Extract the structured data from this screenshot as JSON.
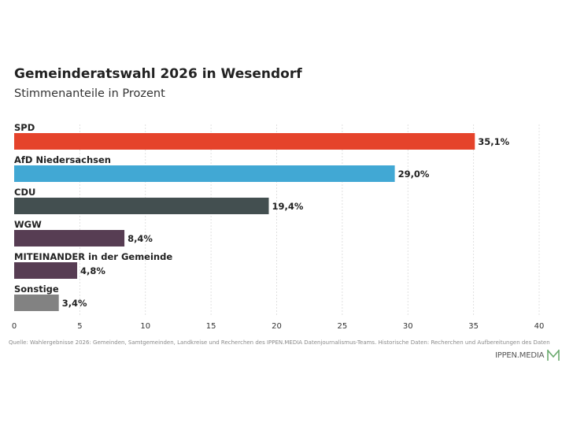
{
  "title": "Gemeinderatswahl 2026 in Wesendorf",
  "subtitle": "Stimmenanteile in Prozent",
  "source": "Quelle: Wahlergebnisse 2026: Gemeinden, Samtgemeinden, Landkreise und Recherchen des IPPEN.MEDIA Datenjournalismus-Teams. Historische Daten: Recherchen und Aufbereitungen des Daten",
  "brand": "IPPEN.MEDIA",
  "colors": {
    "SPD": "#e5432b",
    "AfD": "#41a8d4",
    "CDU": "#434f50",
    "WGW": "#573d53",
    "MITEINANDER": "#573d53",
    "Sonstige": "#828282",
    "logo": "#6aaa6e"
  },
  "chart_data": {
    "type": "bar",
    "orientation": "horizontal",
    "categories": [
      "SPD",
      "AfD Niedersachsen",
      "CDU",
      "WGW",
      "MITEINANDER in der Gemeinde",
      "Sonstige"
    ],
    "values": [
      35.1,
      29.0,
      19.4,
      8.4,
      4.8,
      3.4
    ],
    "value_labels": [
      "35,1%",
      "29,0%",
      "19,4%",
      "8,4%",
      "4,8%",
      "3,4%"
    ],
    "bar_colors": [
      "#e5432b",
      "#41a8d4",
      "#434f50",
      "#573d53",
      "#573d53",
      "#828282"
    ],
    "xlim": [
      0,
      40
    ],
    "x_ticks": [
      0,
      5,
      10,
      15,
      20,
      25,
      30,
      35,
      40
    ],
    "grid": true,
    "title": "Gemeinderatswahl 2026 in Wesendorf",
    "subtitle": "Stimmenanteile in Prozent",
    "xlabel": "",
    "ylabel": ""
  }
}
